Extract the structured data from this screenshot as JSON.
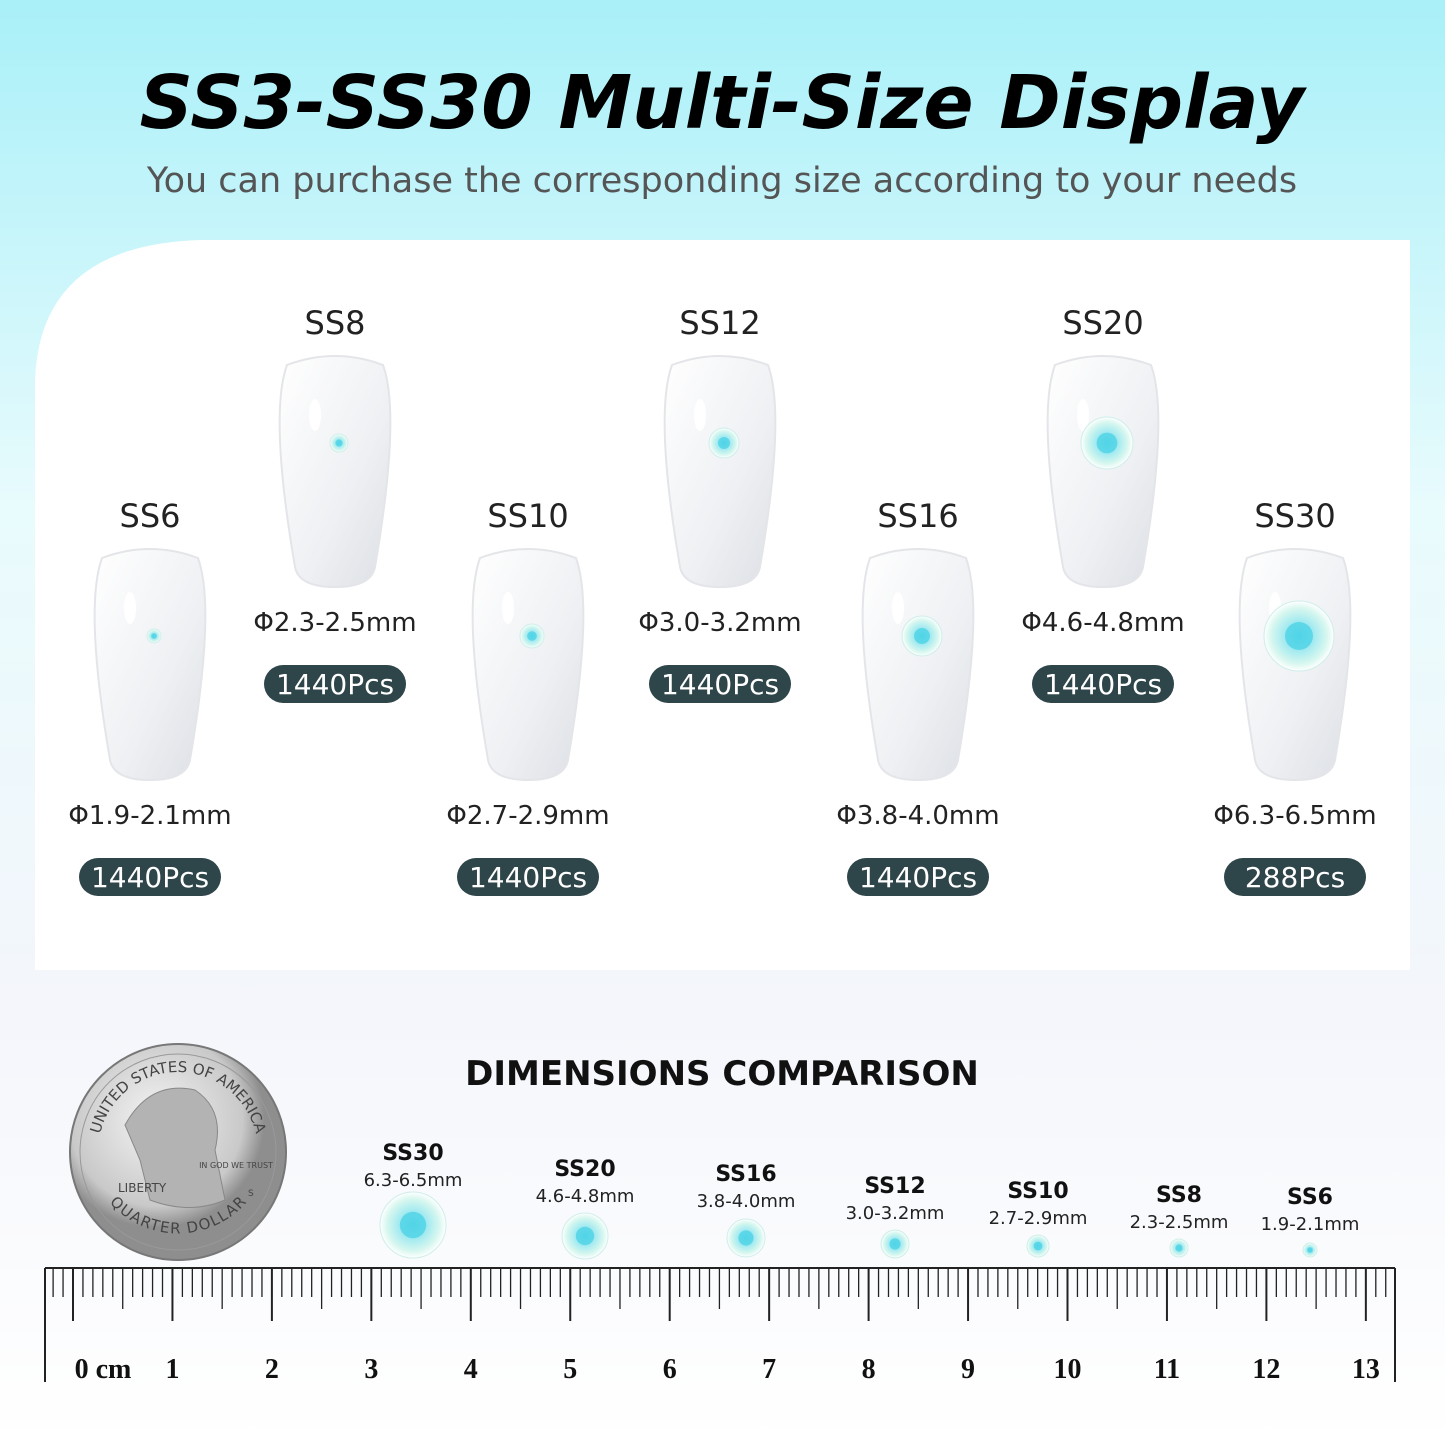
{
  "header": {
    "title": "SS3-SS30 Multi-Size Display",
    "subtitle": "You can purchase the corresponding size according to your needs"
  },
  "sizes": [
    {
      "name": "SS6",
      "diameter": "Φ1.9-2.1mm",
      "count": "1440Pcs"
    },
    {
      "name": "SS8",
      "diameter": "Φ2.3-2.5mm",
      "count": "1440Pcs"
    },
    {
      "name": "SS10",
      "diameter": "Φ2.7-2.9mm",
      "count": "1440Pcs"
    },
    {
      "name": "SS12",
      "diameter": "Φ3.0-3.2mm",
      "count": "1440Pcs"
    },
    {
      "name": "SS16",
      "diameter": "Φ3.8-4.0mm",
      "count": "1440Pcs"
    },
    {
      "name": "SS20",
      "diameter": "Φ4.6-4.8mm",
      "count": "1440Pcs"
    },
    {
      "name": "SS30",
      "diameter": "Φ6.3-6.5mm",
      "count": "288Pcs"
    }
  ],
  "comparison": {
    "title": "DIMENSIONS COMPARISON",
    "items": [
      {
        "name": "SS30",
        "size": "6.3-6.5mm"
      },
      {
        "name": "SS20",
        "size": "4.6-4.8mm"
      },
      {
        "name": "SS16",
        "size": "3.8-4.0mm"
      },
      {
        "name": "SS12",
        "size": "3.0-3.2mm"
      },
      {
        "name": "SS10",
        "size": "2.7-2.9mm"
      },
      {
        "name": "SS8",
        "size": "2.3-2.5mm"
      },
      {
        "name": "SS6",
        "size": "1.9-2.1mm"
      }
    ]
  },
  "coin": {
    "top": "UNITED STATES OF AMERICA",
    "bottom": "QUARTER DOLLAR",
    "liberty": "LIBERTY",
    "motto": "IN GOD WE TRUST",
    "mint": "S"
  },
  "ruler": {
    "labels": [
      "0 cm",
      "1",
      "2",
      "3",
      "4",
      "5",
      "6",
      "7",
      "8",
      "9",
      "10",
      "11",
      "12",
      "13"
    ]
  }
}
